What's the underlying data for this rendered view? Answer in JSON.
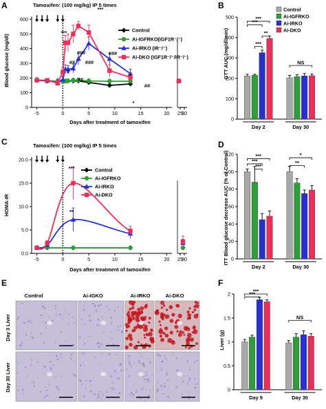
{
  "panel_labels": {
    "A": "A",
    "B": "B",
    "C": "C",
    "D": "D",
    "E": "E",
    "F": "F"
  },
  "colors": {
    "control": "#000000",
    "igfrko": "#2e9e3a",
    "irko": "#2a2fd0",
    "dko": "#e8305a",
    "gray": "#a9a9a9",
    "tissue": "#c7bfd9",
    "lipid": "#c0161f"
  },
  "chart_data": [
    {
      "id": "A",
      "type": "line",
      "title": "Tamoxifen: (100 mg/kg) IP   5 times",
      "xlabel": "Days after treatment of tamoxifen",
      "ylabel": "Blood glucose (mg/dl)",
      "ylim": [
        0,
        600
      ],
      "yticks": [
        0,
        100,
        200,
        300,
        400,
        500,
        600
      ],
      "xtick_labels": [
        "-5",
        "0",
        "5",
        "10",
        "15",
        "20",
        "25",
        "30"
      ],
      "injection_days": [
        -5,
        -4,
        -3,
        -1,
        0
      ],
      "x": [
        -5,
        -3,
        -1,
        0,
        0.5,
        1,
        2,
        3,
        5,
        9,
        13,
        25
      ],
      "series": [
        {
          "name": "Control",
          "key": "control",
          "values": [
            185,
            180,
            175,
            180,
            178,
            180,
            180,
            180,
            170,
            150,
            160,
            180
          ],
          "err": [
            10,
            10,
            10,
            10,
            10,
            10,
            10,
            10,
            10,
            10,
            10,
            10
          ]
        },
        {
          "name": "Ai-IGFRKO(IGF1R⁻/⁻)",
          "key": "igfrko",
          "values": [
            185,
            182,
            178,
            175,
            178,
            180,
            185,
            185,
            180,
            178,
            178,
            180
          ],
          "err": [
            20,
            15,
            20,
            15,
            15,
            15,
            15,
            15,
            15,
            15,
            15,
            10
          ]
        },
        {
          "name": "Ai-IRKO (IR⁻/⁻)",
          "key": "irko",
          "values": [
            185,
            180,
            170,
            190,
            260,
            260,
            265,
            330,
            435,
            330,
            230,
            180
          ],
          "err": [
            10,
            10,
            20,
            20,
            30,
            25,
            30,
            40,
            45,
            40,
            30,
            10
          ]
        },
        {
          "name": "Ai-DKO (IGF1R⁻/⁻/IR⁻/⁻)",
          "key": "dko",
          "values": [
            185,
            185,
            165,
            240,
            440,
            440,
            500,
            555,
            510,
            250,
            205,
            180
          ],
          "err": [
            10,
            10,
            20,
            30,
            50,
            60,
            60,
            30,
            50,
            40,
            30,
            10
          ]
        }
      ],
      "annotations": [
        "***",
        "***",
        "#",
        "##",
        "##",
        "###",
        "###",
        "###",
        "*",
        "##",
        "*"
      ]
    },
    {
      "id": "B",
      "type": "bar",
      "ylabel": "GTT AUC (mg/dl/min)",
      "ylim": [
        0,
        500
      ],
      "yticks": [
        0,
        100,
        200,
        300,
        400,
        500
      ],
      "categories": [
        "Day 2",
        "Day 30"
      ],
      "series": [
        {
          "name": "Control",
          "key": "gray",
          "values": [
            212,
            203
          ],
          "err": [
            8,
            12
          ]
        },
        {
          "name": "Ai-IGFRKO",
          "key": "igfrko",
          "values": [
            215,
            208
          ],
          "err": [
            5,
            10
          ]
        },
        {
          "name": "Ai-IRKO",
          "key": "irko",
          "values": [
            326,
            212
          ],
          "err": [
            12,
            12
          ]
        },
        {
          "name": "Ai-DKO",
          "key": "dko",
          "values": [
            396,
            213
          ],
          "err": [
            12,
            8
          ]
        }
      ],
      "significance": [
        "***",
        "***",
        "***",
        "**",
        "NS"
      ]
    },
    {
      "id": "C",
      "type": "line",
      "title": "Tamoxifen: (100 mg/kg) IP   5 times",
      "xlabel": "Days after treatment of tamoxifen",
      "ylabel": "HOMA-IR",
      "ylim": [
        0,
        20
      ],
      "yticks": [
        0.0,
        5.0,
        10.0,
        15.0,
        20.0
      ],
      "xtick_labels": [
        "-5",
        "0",
        "5",
        "10",
        "15",
        "20",
        "25",
        "30"
      ],
      "injection_days": [
        -5,
        -4,
        -3,
        -1,
        0
      ],
      "x": [
        -5,
        -3,
        2,
        13,
        28
      ],
      "series": [
        {
          "name": "Control",
          "key": "control",
          "values": [
            1.2,
            1.2,
            1.2,
            1.2,
            1.2
          ],
          "err": [
            0.3,
            0.3,
            0.3,
            0.3,
            0.3
          ]
        },
        {
          "name": "Ai-IGFRKO",
          "key": "igfrko",
          "values": [
            1.2,
            1.2,
            1.2,
            1.2,
            1.2
          ],
          "err": [
            0.3,
            0.3,
            0.3,
            0.3,
            0.3
          ]
        },
        {
          "name": "Ai-IRKO",
          "key": "irko",
          "values": [
            1.2,
            1.8,
            7.2,
            4.2,
            2.2
          ],
          "err": [
            0.3,
            0.5,
            2.5,
            1.0,
            0.8
          ]
        },
        {
          "name": "Ai-DKO",
          "key": "dko",
          "values": [
            1.2,
            2.2,
            15.0,
            4.8,
            2.5
          ],
          "err": [
            0.3,
            0.5,
            3.5,
            1.0,
            1.2
          ]
        }
      ],
      "annotations": [
        "***",
        "**"
      ]
    },
    {
      "id": "D",
      "type": "bar",
      "ylabel": "ITT Blood glucose decrease AUC (% of Control)",
      "ylim": [
        0,
        120
      ],
      "yticks": [
        0,
        20,
        40,
        60,
        80,
        100,
        120
      ],
      "categories": [
        "Day 2",
        "Day 30"
      ],
      "series": [
        {
          "name": "Control",
          "key": "gray",
          "values": [
            100,
            100
          ],
          "err": [
            3,
            6
          ]
        },
        {
          "name": "Ai-IGFRKO",
          "key": "igfrko",
          "values": [
            88,
            87
          ],
          "err": [
            18,
            5
          ]
        },
        {
          "name": "Ai-IRKO",
          "key": "irko",
          "values": [
            45,
            75
          ],
          "err": [
            7,
            4
          ]
        },
        {
          "name": "Ai-DKO",
          "key": "dko",
          "values": [
            49,
            79
          ],
          "err": [
            6,
            5
          ]
        }
      ],
      "significance": [
        "***",
        "***",
        "***",
        "*",
        "**"
      ]
    },
    {
      "id": "F",
      "type": "bar",
      "ylabel": "Liver (g)",
      "ylim": [
        0,
        2.0
      ],
      "yticks": [
        0,
        0.5,
        1.0,
        1.5,
        2.0
      ],
      "categories": [
        "Day 9",
        "Day 30"
      ],
      "series": [
        {
          "name": "Control",
          "key": "gray",
          "values": [
            1.0,
            0.98
          ],
          "err": [
            0.05,
            0.05
          ]
        },
        {
          "name": "Ai-IGFRKO",
          "key": "igfrko",
          "values": [
            1.1,
            1.1
          ],
          "err": [
            0.04,
            0.07
          ]
        },
        {
          "name": "Ai-IRKO",
          "key": "irko",
          "values": [
            1.88,
            1.15
          ],
          "err": [
            0.05,
            0.08
          ]
        },
        {
          "name": "Ai-DKO",
          "key": "dko",
          "values": [
            1.84,
            1.12
          ],
          "err": [
            0.04,
            0.05
          ]
        }
      ],
      "significance": [
        "***",
        "***",
        "NS"
      ]
    }
  ],
  "panel_e": {
    "column_headers": [
      "Control",
      "Ai-IGKO",
      "Ai-IRKO",
      "Ai-DKO"
    ],
    "row_labels": [
      "Day 3 Liver",
      "Day 30 Liver"
    ]
  }
}
